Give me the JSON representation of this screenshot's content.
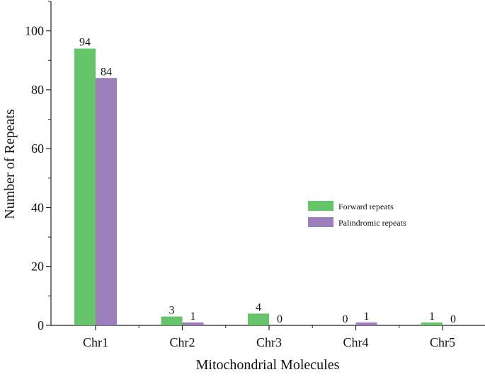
{
  "chart_data": {
    "type": "bar",
    "title": "",
    "xlabel": "Mitochondrial Molecules",
    "ylabel": "Number of Repeats",
    "categories": [
      "Chr1",
      "Chr2",
      "Chr3",
      "Chr4",
      "Chr5"
    ],
    "series": [
      {
        "name": "Forward repeats",
        "color": "#66c46a",
        "values": [
          94,
          3,
          4,
          0,
          1
        ]
      },
      {
        "name": "Palindromic repeats",
        "color": "#9b7ebb",
        "values": [
          84,
          1,
          0,
          1,
          0
        ]
      }
    ],
    "ylim": [
      0,
      110
    ],
    "yticks": [
      0,
      20,
      40,
      60,
      80,
      100
    ],
    "grid": false,
    "legend_position": "middle-right"
  }
}
